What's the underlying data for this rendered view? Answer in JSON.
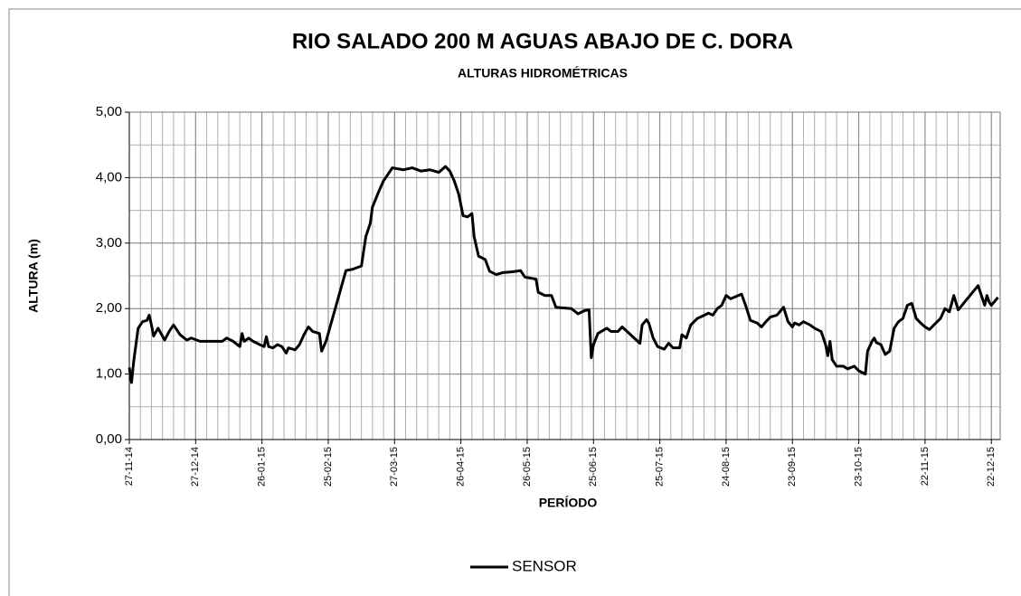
{
  "chart_data": {
    "type": "line",
    "title": "RIO SALADO 200 M AGUAS ABAJO DE C. DORA",
    "subtitle": "ALTURAS HIDROMÉTRICAS",
    "y_label": "ALTURA (m)",
    "x_label": "PERÍODO",
    "xlim": [
      "27-11-14",
      "26-12-15"
    ],
    "xticks": [
      "27-11-14",
      "27-12-14",
      "26-01-15",
      "25-02-15",
      "27-03-15",
      "26-04-15",
      "26-05-15",
      "25-06-15",
      "25-07-15",
      "24-08-15",
      "23-09-15",
      "23-10-15",
      "22-11-15",
      "22-12-15"
    ],
    "ylim": [
      0,
      5
    ],
    "yticks": [
      {
        "value": 0,
        "label": "0,00"
      },
      {
        "value": 1,
        "label": "1,00"
      },
      {
        "value": 2,
        "label": "2,00"
      },
      {
        "value": 3,
        "label": "3,00"
      },
      {
        "value": 4,
        "label": "4,00"
      },
      {
        "value": 5,
        "label": "5,00"
      }
    ],
    "grid": true,
    "xgrid_step_days": 5,
    "ygrid_step": 0.5,
    "legend": "bottom",
    "x": [
      "27-11-14",
      "28-11-14",
      "29-11-14",
      "01-12-14",
      "03-12-14",
      "05-12-14",
      "06-12-14",
      "07-12-14",
      "08-12-14",
      "10-12-14",
      "13-12-14",
      "15-12-14",
      "17-12-14",
      "20-12-14",
      "23-12-14",
      "25-12-14",
      "29-12-14",
      "02-01-15",
      "08-01-15",
      "10-01-15",
      "13-01-15",
      "16-01-15",
      "17-01-15",
      "18-01-15",
      "20-01-15",
      "22-01-15",
      "25-01-15",
      "27-01-15",
      "28-01-15",
      "29-01-15",
      "31-01-15",
      "02-02-15",
      "04-02-15",
      "06-02-15",
      "07-02-15",
      "10-02-15",
      "12-02-15",
      "14-02-15",
      "16-02-15",
      "18-02-15",
      "21-02-15",
      "22-02-15",
      "24-02-15",
      "05-03-15",
      "08-03-15",
      "12-03-15",
      "14-03-15",
      "16-03-15",
      "17-03-15",
      "20-03-15",
      "22-03-15",
      "24-03-15",
      "26-03-15",
      "31-03-15",
      "04-04-15",
      "08-04-15",
      "12-04-15",
      "16-04-15",
      "19-04-15",
      "21-04-15",
      "23-04-15",
      "25-04-15",
      "27-04-15",
      "29-04-15",
      "01-05-15",
      "02-05-15",
      "04-05-15",
      "07-05-15",
      "09-05-15",
      "12-05-15",
      "15-05-15",
      "19-05-15",
      "23-05-15",
      "25-05-15",
      "30-05-15",
      "31-05-15",
      "03-06-15",
      "06-06-15",
      "08-06-15",
      "15-06-15",
      "18-06-15",
      "21-06-15",
      "23-06-15",
      "24-06-15",
      "25-06-15",
      "27-06-15",
      "01-07-15",
      "03-07-15",
      "06-07-15",
      "08-07-15",
      "15-07-15",
      "16-07-15",
      "17-07-15",
      "19-07-15",
      "20-07-15",
      "22-07-15",
      "24-07-15",
      "27-07-15",
      "29-07-15",
      "31-07-15",
      "03-08-15",
      "04-08-15",
      "06-08-15",
      "08-08-15",
      "11-08-15",
      "13-08-15",
      "16-08-15",
      "18-08-15",
      "20-08-15",
      "22-08-15",
      "24-08-15",
      "26-08-15",
      "31-08-15",
      "02-09-15",
      "04-09-15",
      "07-09-15",
      "09-09-15",
      "11-09-15",
      "13-09-15",
      "16-09-15",
      "18-09-15",
      "19-09-15",
      "21-09-15",
      "23-09-15",
      "24-09-15",
      "26-09-15",
      "28-09-15",
      "01-10-15",
      "03-10-15",
      "06-10-15",
      "08-10-15",
      "09-10-15",
      "10-10-15",
      "11-10-15",
      "13-10-15",
      "16-10-15",
      "18-10-15",
      "21-10-15",
      "23-10-15",
      "26-10-15",
      "27-10-15",
      "29-10-15",
      "30-10-15",
      "31-10-15",
      "02-11-15",
      "04-11-15",
      "06-11-15",
      "08-11-15",
      "10-11-15",
      "12-11-15",
      "14-11-15",
      "16-11-15",
      "18-11-15",
      "20-11-15",
      "22-11-15",
      "24-11-15",
      "26-11-15",
      "29-11-15",
      "01-12-15",
      "03-12-15",
      "05-12-15",
      "07-12-15",
      "16-12-15",
      "18-12-15",
      "19-12-15",
      "20-12-15",
      "21-12-15",
      "22-12-15",
      "25-12-15"
    ],
    "series": [
      {
        "name": "SENSOR",
        "color": "#000000",
        "values": [
          1.1,
          0.87,
          1.2,
          1.7,
          1.8,
          1.82,
          1.9,
          1.75,
          1.58,
          1.7,
          1.52,
          1.65,
          1.75,
          1.6,
          1.52,
          1.55,
          1.5,
          1.5,
          1.5,
          1.55,
          1.5,
          1.42,
          1.62,
          1.5,
          1.55,
          1.5,
          1.45,
          1.42,
          1.57,
          1.42,
          1.4,
          1.45,
          1.42,
          1.32,
          1.4,
          1.37,
          1.45,
          1.6,
          1.72,
          1.65,
          1.62,
          1.35,
          1.5,
          2.58,
          2.6,
          2.65,
          3.1,
          3.3,
          3.55,
          3.8,
          3.95,
          4.05,
          4.15,
          4.12,
          4.15,
          4.1,
          4.12,
          4.08,
          4.17,
          4.1,
          3.95,
          3.75,
          3.42,
          3.4,
          3.45,
          3.1,
          2.8,
          2.75,
          2.57,
          2.52,
          2.55,
          2.56,
          2.58,
          2.48,
          2.45,
          2.25,
          2.2,
          2.2,
          2.02,
          2.0,
          1.92,
          1.97,
          1.98,
          1.25,
          1.45,
          1.62,
          1.7,
          1.65,
          1.65,
          1.72,
          1.5,
          1.47,
          1.75,
          1.83,
          1.78,
          1.55,
          1.42,
          1.38,
          1.47,
          1.4,
          1.4,
          1.6,
          1.55,
          1.75,
          1.85,
          1.88,
          1.93,
          1.9,
          2.0,
          2.05,
          2.2,
          2.15,
          2.22,
          2.03,
          1.82,
          1.78,
          1.72,
          1.8,
          1.87,
          1.9,
          1.98,
          2.02,
          1.8,
          1.72,
          1.78,
          1.75,
          1.8,
          1.75,
          1.7,
          1.65,
          1.45,
          1.28,
          1.5,
          1.22,
          1.12,
          1.12,
          1.08,
          1.12,
          1.05,
          1.0,
          1.35,
          1.5,
          1.55,
          1.48,
          1.45,
          1.3,
          1.35,
          1.7,
          1.8,
          1.85,
          2.05,
          2.08,
          1.85,
          1.78,
          1.72,
          1.68,
          1.75,
          1.85,
          2.0,
          1.95,
          2.2,
          1.98,
          2.35,
          2.15,
          2.05,
          2.2,
          2.1,
          2.05,
          2.17
        ]
      }
    ]
  }
}
